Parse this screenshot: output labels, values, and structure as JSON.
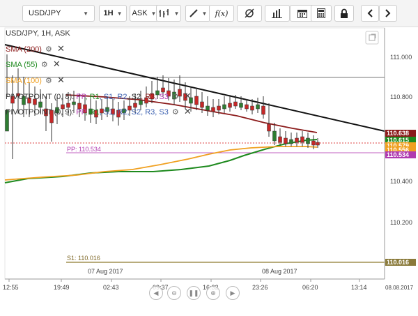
{
  "toolbar": {
    "symbol": "USD/JPY",
    "timeframe": "1H",
    "price_type": "ASK",
    "fx_label": "f(x)",
    "icons": [
      "chart-type-icon",
      "draw-icon",
      "indicator-icon",
      "crosshair-icon",
      "bar-chart-icon",
      "calendar-icon",
      "calculator-icon",
      "lock-icon",
      "chevron-left-icon",
      "chevron-right-icon"
    ]
  },
  "chart": {
    "header": "USD/JPY, 1H, ASK",
    "indicators": [
      {
        "label": "SMA (200)",
        "color": "#8b1a1a"
      },
      {
        "label": "SMA (55)",
        "color": "#1e8a1e"
      },
      {
        "label": "SMA (100)",
        "color": "#f0a020"
      }
    ],
    "pivots": [
      {
        "prefix": "PIVOTPOINT (0, 8):",
        "parts": [
          {
            "t": "PP",
            "c": "#b03ab0"
          },
          {
            "t": "R1",
            "c": "#1e8a1e"
          },
          {
            "t": "S1",
            "c": "#3a5fb0"
          },
          {
            "t": "R2",
            "c": "#3a5fb0"
          },
          {
            "t": "S2",
            "c": "#333"
          },
          {
            "t": "R3",
            "c": "#8b1a1a"
          },
          {
            "t": "S3",
            "c": "#b03ab0"
          }
        ]
      },
      {
        "prefix": "PIVOTPOINT (0, 9):",
        "parts": [
          {
            "t": "PP",
            "c": "#b03ab0"
          },
          {
            "t": "R1",
            "c": "#1e8a1e"
          },
          {
            "t": "S1",
            "c": "#3a5fb0"
          },
          {
            "t": "R2",
            "c": "#3a5fb0"
          },
          {
            "t": "S2",
            "c": "#3a5fb0"
          },
          {
            "t": "R3",
            "c": "#3a5fb0"
          },
          {
            "t": "S3",
            "c": "#3a5fb0"
          }
        ]
      }
    ],
    "pp_label": "PP: 110.534",
    "s1_label": "S1: 110.016",
    "date_labels": [
      "07 Aug 2017",
      "08 Aug 2017"
    ],
    "price_ticks": [
      "111.000",
      "110.800",
      "110.400",
      "110.200"
    ],
    "time_ticks": [
      "12:55",
      "19:49",
      "02:43",
      "09:37",
      "16:32",
      "23:26",
      "06:20",
      "13:14",
      "08.08.2017"
    ],
    "price_boxes": [
      {
        "label": "110.638",
        "color": "#8b1a1a"
      },
      {
        "label": "110.615",
        "color": "#1e8a1e"
      },
      {
        "label": "110.579",
        "color": "#f0a020"
      },
      {
        "label": "110.556",
        "color": "#f0a020"
      },
      {
        "label": "110.534",
        "color": "#b03ab0"
      },
      {
        "label": "110.016",
        "color": "#8a7a3a"
      }
    ]
  }
}
